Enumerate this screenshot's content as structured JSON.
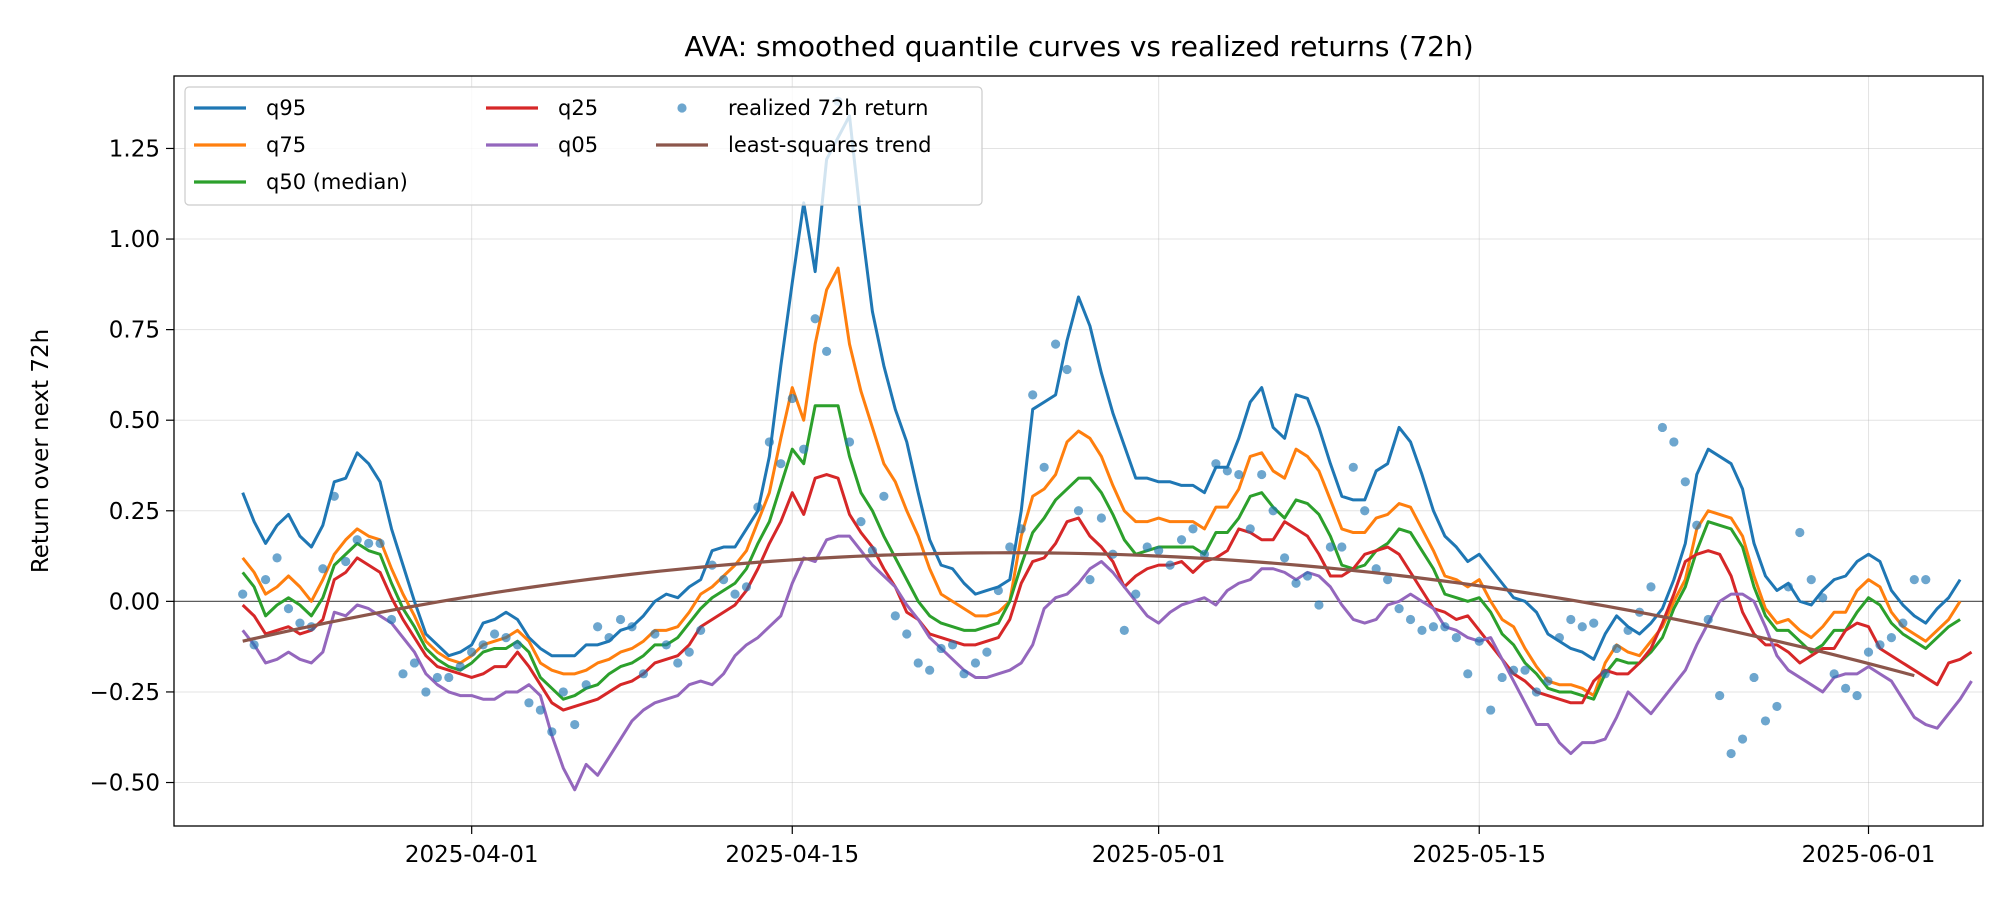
{
  "chart_data": {
    "type": "line",
    "title": "AVA: smoothed quantile curves vs realized returns (72h)",
    "xlabel": "",
    "ylabel": "Return over next 72h",
    "x_start": "2025-03-22",
    "x_step_days": 0.5,
    "xlim": [
      "2025-03-19",
      "2025-06-06"
    ],
    "ylim": [
      -0.62,
      1.45
    ],
    "x_ticks": [
      "2025-04-01",
      "2025-04-15",
      "2025-05-01",
      "2025-05-15",
      "2025-06-01"
    ],
    "y_ticks": [
      -0.5,
      -0.25,
      0.0,
      0.25,
      0.5,
      0.75,
      1.0,
      1.25
    ],
    "y_tick_labels": [
      "−0.50",
      "−0.25",
      "0.00",
      "0.25",
      "0.50",
      "0.75",
      "1.00",
      "1.25"
    ],
    "grid": true,
    "zero_line": true,
    "legend_position": "top-left",
    "series": [
      {
        "name": "q95",
        "color": "#1f77b4",
        "values": [
          0.3,
          0.22,
          0.16,
          0.21,
          0.24,
          0.18,
          0.15,
          0.21,
          0.33,
          0.34,
          0.41,
          0.38,
          0.33,
          0.2,
          0.1,
          0.0,
          -0.09,
          -0.12,
          -0.15,
          -0.14,
          -0.12,
          -0.06,
          -0.05,
          -0.03,
          -0.05,
          -0.1,
          -0.13,
          -0.15,
          -0.15,
          -0.15,
          -0.12,
          -0.12,
          -0.11,
          -0.08,
          -0.07,
          -0.04,
          0.0,
          0.02,
          0.01,
          0.04,
          0.06,
          0.14,
          0.15,
          0.15,
          0.2,
          0.25,
          0.4,
          0.65,
          0.88,
          1.1,
          0.91,
          1.22,
          1.28,
          1.34,
          1.05,
          0.8,
          0.65,
          0.53,
          0.44,
          0.3,
          0.17,
          0.1,
          0.09,
          0.05,
          0.02,
          0.03,
          0.04,
          0.06,
          0.25,
          0.53,
          0.55,
          0.57,
          0.72,
          0.84,
          0.76,
          0.63,
          0.52,
          0.43,
          0.34,
          0.34,
          0.33,
          0.33,
          0.32,
          0.32,
          0.3,
          0.37,
          0.37,
          0.45,
          0.55,
          0.59,
          0.48,
          0.45,
          0.57,
          0.56,
          0.48,
          0.38,
          0.29,
          0.28,
          0.28,
          0.36,
          0.38,
          0.48,
          0.44,
          0.35,
          0.25,
          0.18,
          0.15,
          0.11,
          0.13,
          0.09,
          0.05,
          0.01,
          0.0,
          -0.03,
          -0.09,
          -0.11,
          -0.13,
          -0.14,
          -0.16,
          -0.09,
          -0.04,
          -0.07,
          -0.09,
          -0.06,
          -0.02,
          0.06,
          0.16,
          0.35,
          0.42,
          0.4,
          0.38,
          0.31,
          0.16,
          0.07,
          0.03,
          0.05,
          0.0,
          -0.01,
          0.03,
          0.06,
          0.07,
          0.11,
          0.13,
          0.11,
          0.03,
          -0.01,
          -0.04,
          -0.06,
          -0.02,
          0.01,
          0.06
        ]
      },
      {
        "name": "q75",
        "color": "#ff7f0e",
        "values": [
          0.12,
          0.08,
          0.02,
          0.04,
          0.07,
          0.04,
          0.0,
          0.06,
          0.13,
          0.17,
          0.2,
          0.18,
          0.17,
          0.09,
          0.02,
          -0.04,
          -0.11,
          -0.14,
          -0.16,
          -0.17,
          -0.15,
          -0.12,
          -0.11,
          -0.1,
          -0.08,
          -0.11,
          -0.17,
          -0.19,
          -0.2,
          -0.2,
          -0.19,
          -0.17,
          -0.16,
          -0.14,
          -0.13,
          -0.11,
          -0.08,
          -0.08,
          -0.07,
          -0.03,
          0.02,
          0.04,
          0.07,
          0.1,
          0.14,
          0.22,
          0.3,
          0.45,
          0.59,
          0.5,
          0.71,
          0.86,
          0.92,
          0.71,
          0.58,
          0.48,
          0.38,
          0.33,
          0.25,
          0.18,
          0.09,
          0.02,
          0.0,
          -0.02,
          -0.04,
          -0.04,
          -0.03,
          0.0,
          0.18,
          0.29,
          0.31,
          0.35,
          0.44,
          0.47,
          0.45,
          0.4,
          0.32,
          0.25,
          0.22,
          0.22,
          0.23,
          0.22,
          0.22,
          0.22,
          0.2,
          0.26,
          0.26,
          0.31,
          0.4,
          0.41,
          0.36,
          0.34,
          0.42,
          0.4,
          0.36,
          0.28,
          0.2,
          0.19,
          0.19,
          0.23,
          0.24,
          0.27,
          0.26,
          0.2,
          0.14,
          0.07,
          0.06,
          0.04,
          0.06,
          0.0,
          -0.05,
          -0.07,
          -0.13,
          -0.18,
          -0.22,
          -0.23,
          -0.23,
          -0.24,
          -0.26,
          -0.17,
          -0.12,
          -0.14,
          -0.15,
          -0.11,
          -0.07,
          0.0,
          0.06,
          0.2,
          0.25,
          0.24,
          0.23,
          0.18,
          0.07,
          -0.02,
          -0.06,
          -0.05,
          -0.08,
          -0.1,
          -0.07,
          -0.03,
          -0.03,
          0.03,
          0.06,
          0.04,
          -0.03,
          -0.07,
          -0.09,
          -0.11,
          -0.08,
          -0.05,
          0.0
        ]
      },
      {
        "name": "q50 (median)",
        "color": "#2ca02c",
        "values": [
          0.08,
          0.04,
          -0.04,
          -0.01,
          0.01,
          -0.01,
          -0.04,
          0.01,
          0.1,
          0.13,
          0.16,
          0.14,
          0.13,
          0.05,
          -0.02,
          -0.07,
          -0.13,
          -0.16,
          -0.18,
          -0.19,
          -0.17,
          -0.14,
          -0.13,
          -0.13,
          -0.11,
          -0.14,
          -0.21,
          -0.24,
          -0.27,
          -0.26,
          -0.24,
          -0.23,
          -0.2,
          -0.18,
          -0.17,
          -0.15,
          -0.12,
          -0.12,
          -0.1,
          -0.06,
          -0.02,
          0.01,
          0.03,
          0.05,
          0.09,
          0.16,
          0.22,
          0.32,
          0.42,
          0.38,
          0.54,
          0.54,
          0.54,
          0.4,
          0.3,
          0.25,
          0.18,
          0.12,
          0.06,
          0.0,
          -0.04,
          -0.06,
          -0.07,
          -0.08,
          -0.08,
          -0.07,
          -0.06,
          0.0,
          0.1,
          0.19,
          0.23,
          0.28,
          0.31,
          0.34,
          0.34,
          0.3,
          0.24,
          0.17,
          0.13,
          0.14,
          0.15,
          0.15,
          0.15,
          0.15,
          0.13,
          0.19,
          0.19,
          0.23,
          0.29,
          0.3,
          0.26,
          0.23,
          0.28,
          0.27,
          0.24,
          0.18,
          0.1,
          0.09,
          0.1,
          0.14,
          0.16,
          0.2,
          0.19,
          0.14,
          0.09,
          0.02,
          0.01,
          0.0,
          0.01,
          -0.03,
          -0.09,
          -0.12,
          -0.17,
          -0.2,
          -0.24,
          -0.25,
          -0.25,
          -0.26,
          -0.27,
          -0.2,
          -0.16,
          -0.17,
          -0.17,
          -0.14,
          -0.1,
          -0.02,
          0.04,
          0.14,
          0.22,
          0.21,
          0.2,
          0.15,
          0.04,
          -0.04,
          -0.08,
          -0.08,
          -0.11,
          -0.14,
          -0.12,
          -0.08,
          -0.08,
          -0.03,
          0.01,
          -0.01,
          -0.06,
          -0.09,
          -0.11,
          -0.13,
          -0.1,
          -0.07,
          -0.05
        ]
      },
      {
        "name": "q25",
        "color": "#d62728",
        "values": [
          -0.01,
          -0.04,
          -0.09,
          -0.08,
          -0.07,
          -0.09,
          -0.08,
          -0.05,
          0.06,
          0.08,
          0.12,
          0.1,
          0.08,
          0.01,
          -0.05,
          -0.1,
          -0.15,
          -0.18,
          -0.19,
          -0.2,
          -0.21,
          -0.2,
          -0.18,
          -0.18,
          -0.14,
          -0.18,
          -0.23,
          -0.28,
          -0.3,
          -0.29,
          -0.28,
          -0.27,
          -0.25,
          -0.23,
          -0.22,
          -0.2,
          -0.17,
          -0.16,
          -0.15,
          -0.12,
          -0.07,
          -0.05,
          -0.03,
          -0.01,
          0.03,
          0.09,
          0.16,
          0.22,
          0.3,
          0.24,
          0.34,
          0.35,
          0.34,
          0.24,
          0.19,
          0.15,
          0.09,
          0.04,
          -0.03,
          -0.05,
          -0.09,
          -0.1,
          -0.11,
          -0.12,
          -0.12,
          -0.11,
          -0.1,
          -0.05,
          0.05,
          0.11,
          0.12,
          0.16,
          0.22,
          0.23,
          0.18,
          0.15,
          0.11,
          0.04,
          0.07,
          0.09,
          0.1,
          0.1,
          0.11,
          0.08,
          0.11,
          0.12,
          0.14,
          0.2,
          0.19,
          0.17,
          0.17,
          0.22,
          0.2,
          0.18,
          0.13,
          0.07,
          0.07,
          0.09,
          0.13,
          0.14,
          0.15,
          0.13,
          0.08,
          0.03,
          -0.02,
          -0.03,
          -0.05,
          -0.04,
          -0.08,
          -0.12,
          -0.16,
          -0.2,
          -0.22,
          -0.25,
          -0.26,
          -0.27,
          -0.28,
          -0.28,
          -0.22,
          -0.19,
          -0.2,
          -0.2,
          -0.17,
          -0.13,
          -0.06,
          0.02,
          0.11,
          0.13,
          0.14,
          0.13,
          0.07,
          -0.03,
          -0.09,
          -0.12,
          -0.12,
          -0.14,
          -0.17,
          -0.15,
          -0.13,
          -0.13,
          -0.08,
          -0.06,
          -0.07,
          -0.13,
          -0.15,
          -0.17,
          -0.19,
          -0.21,
          -0.23,
          -0.17,
          -0.16,
          -0.14
        ]
      },
      {
        "name": "q05",
        "color": "#9467bd",
        "values": [
          -0.08,
          -0.12,
          -0.17,
          -0.16,
          -0.14,
          -0.16,
          -0.17,
          -0.14,
          -0.03,
          -0.04,
          -0.01,
          -0.02,
          -0.04,
          -0.06,
          -0.1,
          -0.14,
          -0.2,
          -0.23,
          -0.25,
          -0.26,
          -0.26,
          -0.27,
          -0.27,
          -0.25,
          -0.25,
          -0.23,
          -0.26,
          -0.37,
          -0.46,
          -0.52,
          -0.45,
          -0.48,
          -0.43,
          -0.38,
          -0.33,
          -0.3,
          -0.28,
          -0.27,
          -0.26,
          -0.23,
          -0.22,
          -0.23,
          -0.2,
          -0.15,
          -0.12,
          -0.1,
          -0.07,
          -0.04,
          0.05,
          0.12,
          0.11,
          0.17,
          0.18,
          0.18,
          0.14,
          0.1,
          0.07,
          0.04,
          -0.01,
          -0.05,
          -0.1,
          -0.13,
          -0.16,
          -0.19,
          -0.21,
          -0.21,
          -0.2,
          -0.19,
          -0.17,
          -0.12,
          -0.02,
          0.01,
          0.02,
          0.05,
          0.09,
          0.11,
          0.08,
          0.04,
          0.0,
          -0.04,
          -0.06,
          -0.03,
          -0.01,
          0.0,
          0.01,
          -0.01,
          0.03,
          0.05,
          0.06,
          0.09,
          0.09,
          0.08,
          0.06,
          0.08,
          0.07,
          0.04,
          -0.01,
          -0.05,
          -0.06,
          -0.05,
          -0.01,
          0.0,
          0.02,
          0.0,
          -0.02,
          -0.07,
          -0.08,
          -0.1,
          -0.11,
          -0.1,
          -0.16,
          -0.22,
          -0.28,
          -0.34,
          -0.34,
          -0.39,
          -0.42,
          -0.39,
          -0.39,
          -0.38,
          -0.32,
          -0.25,
          -0.28,
          -0.31,
          -0.27,
          -0.23,
          -0.19,
          -0.12,
          -0.06,
          0.0,
          0.02,
          0.02,
          0.0,
          -0.07,
          -0.15,
          -0.19,
          -0.21,
          -0.23,
          -0.25,
          -0.21,
          -0.2,
          -0.2,
          -0.18,
          -0.2,
          -0.22,
          -0.27,
          -0.32,
          -0.34,
          -0.35,
          -0.31,
          -0.27,
          -0.22
        ]
      },
      {
        "name": "realized 72h return",
        "color": "#1f77b4",
        "type": "scatter",
        "values": [
          0.02,
          -0.12,
          0.06,
          0.12,
          -0.02,
          -0.06,
          -0.07,
          0.09,
          0.29,
          0.11,
          0.17,
          0.16,
          0.16,
          -0.05,
          -0.2,
          -0.17,
          -0.25,
          -0.21,
          -0.21,
          -0.18,
          -0.14,
          -0.12,
          -0.09,
          -0.1,
          -0.12,
          -0.28,
          -0.3,
          -0.36,
          -0.25,
          -0.34,
          -0.23,
          -0.07,
          -0.1,
          -0.05,
          -0.07,
          -0.2,
          -0.09,
          -0.12,
          -0.17,
          -0.14,
          -0.08,
          0.1,
          0.06,
          0.02,
          0.04,
          0.26,
          0.44,
          0.38,
          0.56,
          0.42,
          0.78,
          0.69,
          1.38,
          0.44,
          0.22,
          0.14,
          0.29,
          -0.04,
          -0.09,
          -0.17,
          -0.19,
          -0.13,
          -0.12,
          -0.2,
          -0.17,
          -0.14,
          0.03,
          0.15,
          0.2,
          0.57,
          0.37,
          0.71,
          0.64,
          0.25,
          0.06,
          0.23,
          0.13,
          -0.08,
          0.02,
          0.15,
          0.14,
          0.1,
          0.17,
          0.2,
          0.13,
          0.38,
          0.36,
          0.35,
          0.2,
          0.35,
          0.25,
          0.12,
          0.05,
          0.07,
          -0.01,
          0.15,
          0.15,
          0.37,
          0.25,
          0.09,
          0.06,
          -0.02,
          -0.05,
          -0.08,
          -0.07,
          -0.07,
          -0.1,
          -0.2,
          -0.11,
          -0.3,
          -0.21,
          -0.19,
          -0.19,
          -0.25,
          -0.22,
          -0.1,
          -0.05,
          -0.07,
          -0.06,
          -0.2,
          -0.13,
          -0.08,
          -0.03,
          0.04,
          0.48,
          0.44,
          0.33,
          0.21,
          -0.05,
          -0.26,
          -0.42,
          -0.38,
          -0.21,
          -0.33,
          -0.29,
          0.04,
          0.19,
          0.06,
          0.01,
          -0.2,
          -0.24,
          -0.26,
          -0.14,
          -0.12,
          -0.1,
          -0.06,
          0.06,
          0.06
        ]
      },
      {
        "name": "least-squares trend",
        "color": "#8c564b",
        "type": "trend_quadratic",
        "points": [
          [
            "2025-03-22",
            -0.11
          ],
          [
            "2025-05-01",
            0.125
          ],
          [
            "2025-06-03",
            -0.205
          ]
        ]
      }
    ]
  }
}
